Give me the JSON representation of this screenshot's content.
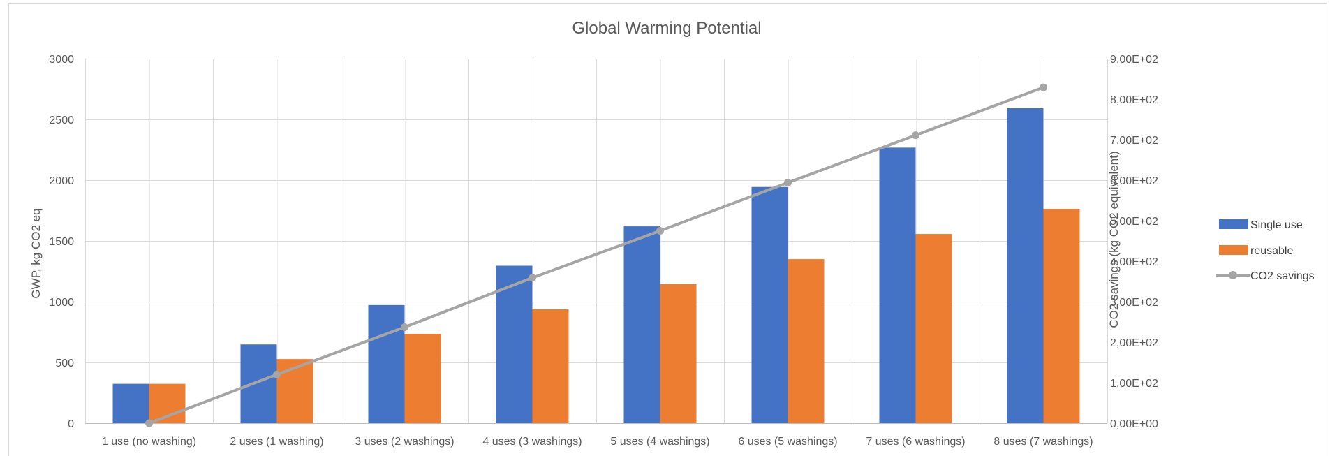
{
  "chart_data": {
    "type": "bar",
    "title": "Global Warming Potential",
    "categories": [
      "1 use (no washing)",
      "2 uses (1 washing)",
      "3 uses (2 washings)",
      "4 uses (3 washings)",
      "5 uses (4 washings)",
      "6 uses (5 washings)",
      "7 uses (6 washings)",
      "8 uses (7 washings)"
    ],
    "series": [
      {
        "name": "Single use",
        "type": "bar",
        "axis": "left",
        "color": "#4472C4",
        "values": [
          324,
          648,
          972,
          1296,
          1620,
          1944,
          2268,
          2592
        ]
      },
      {
        "name": "reusable",
        "type": "bar",
        "axis": "left",
        "color": "#ED7D31",
        "values": [
          324,
          528,
          735,
          937,
          1145,
          1350,
          1557,
          1763
        ]
      },
      {
        "name": "CO2 savings",
        "type": "line",
        "axis": "right",
        "color": "#A5A5A5",
        "marker": "circle",
        "values": [
          0,
          120,
          237,
          359,
          475,
          594,
          711,
          829
        ]
      }
    ],
    "ylabel": "GWP, kg CO2 eq",
    "ylim": [
      0,
      3000
    ],
    "yticks": [
      "0",
      "500",
      "1000",
      "1500",
      "2000",
      "2500",
      "3000"
    ],
    "y2label": "CO2 savings (kg CO2 equivalent)",
    "y2lim": [
      0,
      900
    ],
    "y2ticks": [
      "0,00E+00",
      "1,00E+02",
      "2,00E+02",
      "3,00E+02",
      "4,00E+02",
      "5,00E+02",
      "6,00E+02",
      "7,00E+02",
      "8,00E+02",
      "9,00E+02"
    ],
    "grid": true,
    "legend_position": "right"
  }
}
